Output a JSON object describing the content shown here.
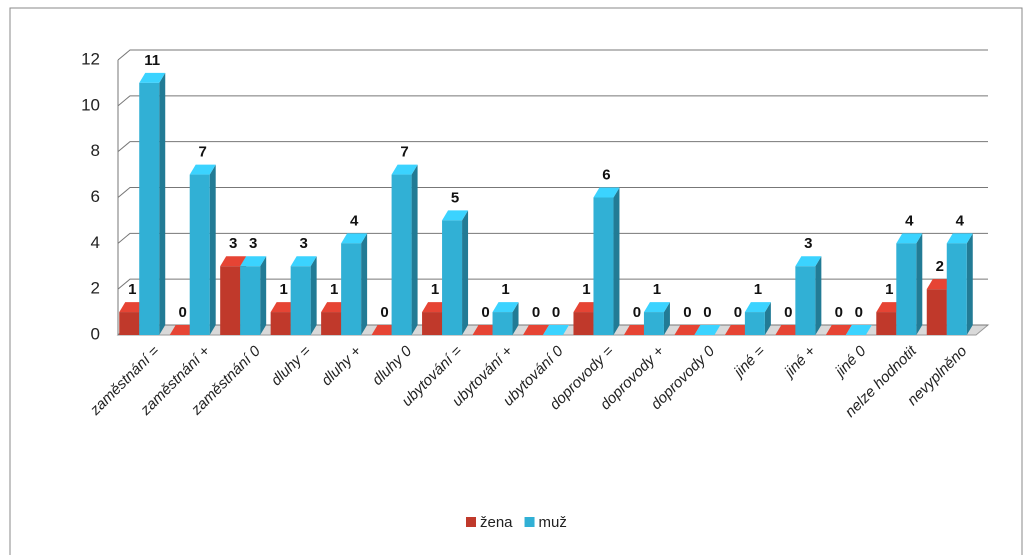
{
  "chart_data": {
    "type": "bar3d",
    "categories": [
      "zaměstnání =",
      "zaměstnání +",
      "zaměstnání 0",
      "dluhy =",
      "dluhy +",
      "dluhy 0",
      "ubytování =",
      "ubytování +",
      "ubytování 0",
      "doprovody =",
      "doprovody +",
      "doprovody 0",
      "jiné =",
      "jiné +",
      "jiné 0",
      "nelze hodnotit",
      "nevyplněno"
    ],
    "series": [
      {
        "name": "žena",
        "color": "#c0392b",
        "values": [
          1,
          0,
          3,
          1,
          1,
          0,
          1,
          0,
          0,
          1,
          0,
          0,
          0,
          0,
          0,
          1,
          2
        ]
      },
      {
        "name": "muž",
        "color": "#31b0d5",
        "values": [
          11,
          7,
          3,
          3,
          4,
          7,
          5,
          1,
          0,
          6,
          1,
          0,
          1,
          3,
          0,
          4,
          4
        ]
      }
    ],
    "ylim": [
      0,
      12
    ],
    "yticks": [
      0,
      2,
      4,
      6,
      8,
      10,
      12
    ],
    "grid": true,
    "legend": "bottom"
  }
}
